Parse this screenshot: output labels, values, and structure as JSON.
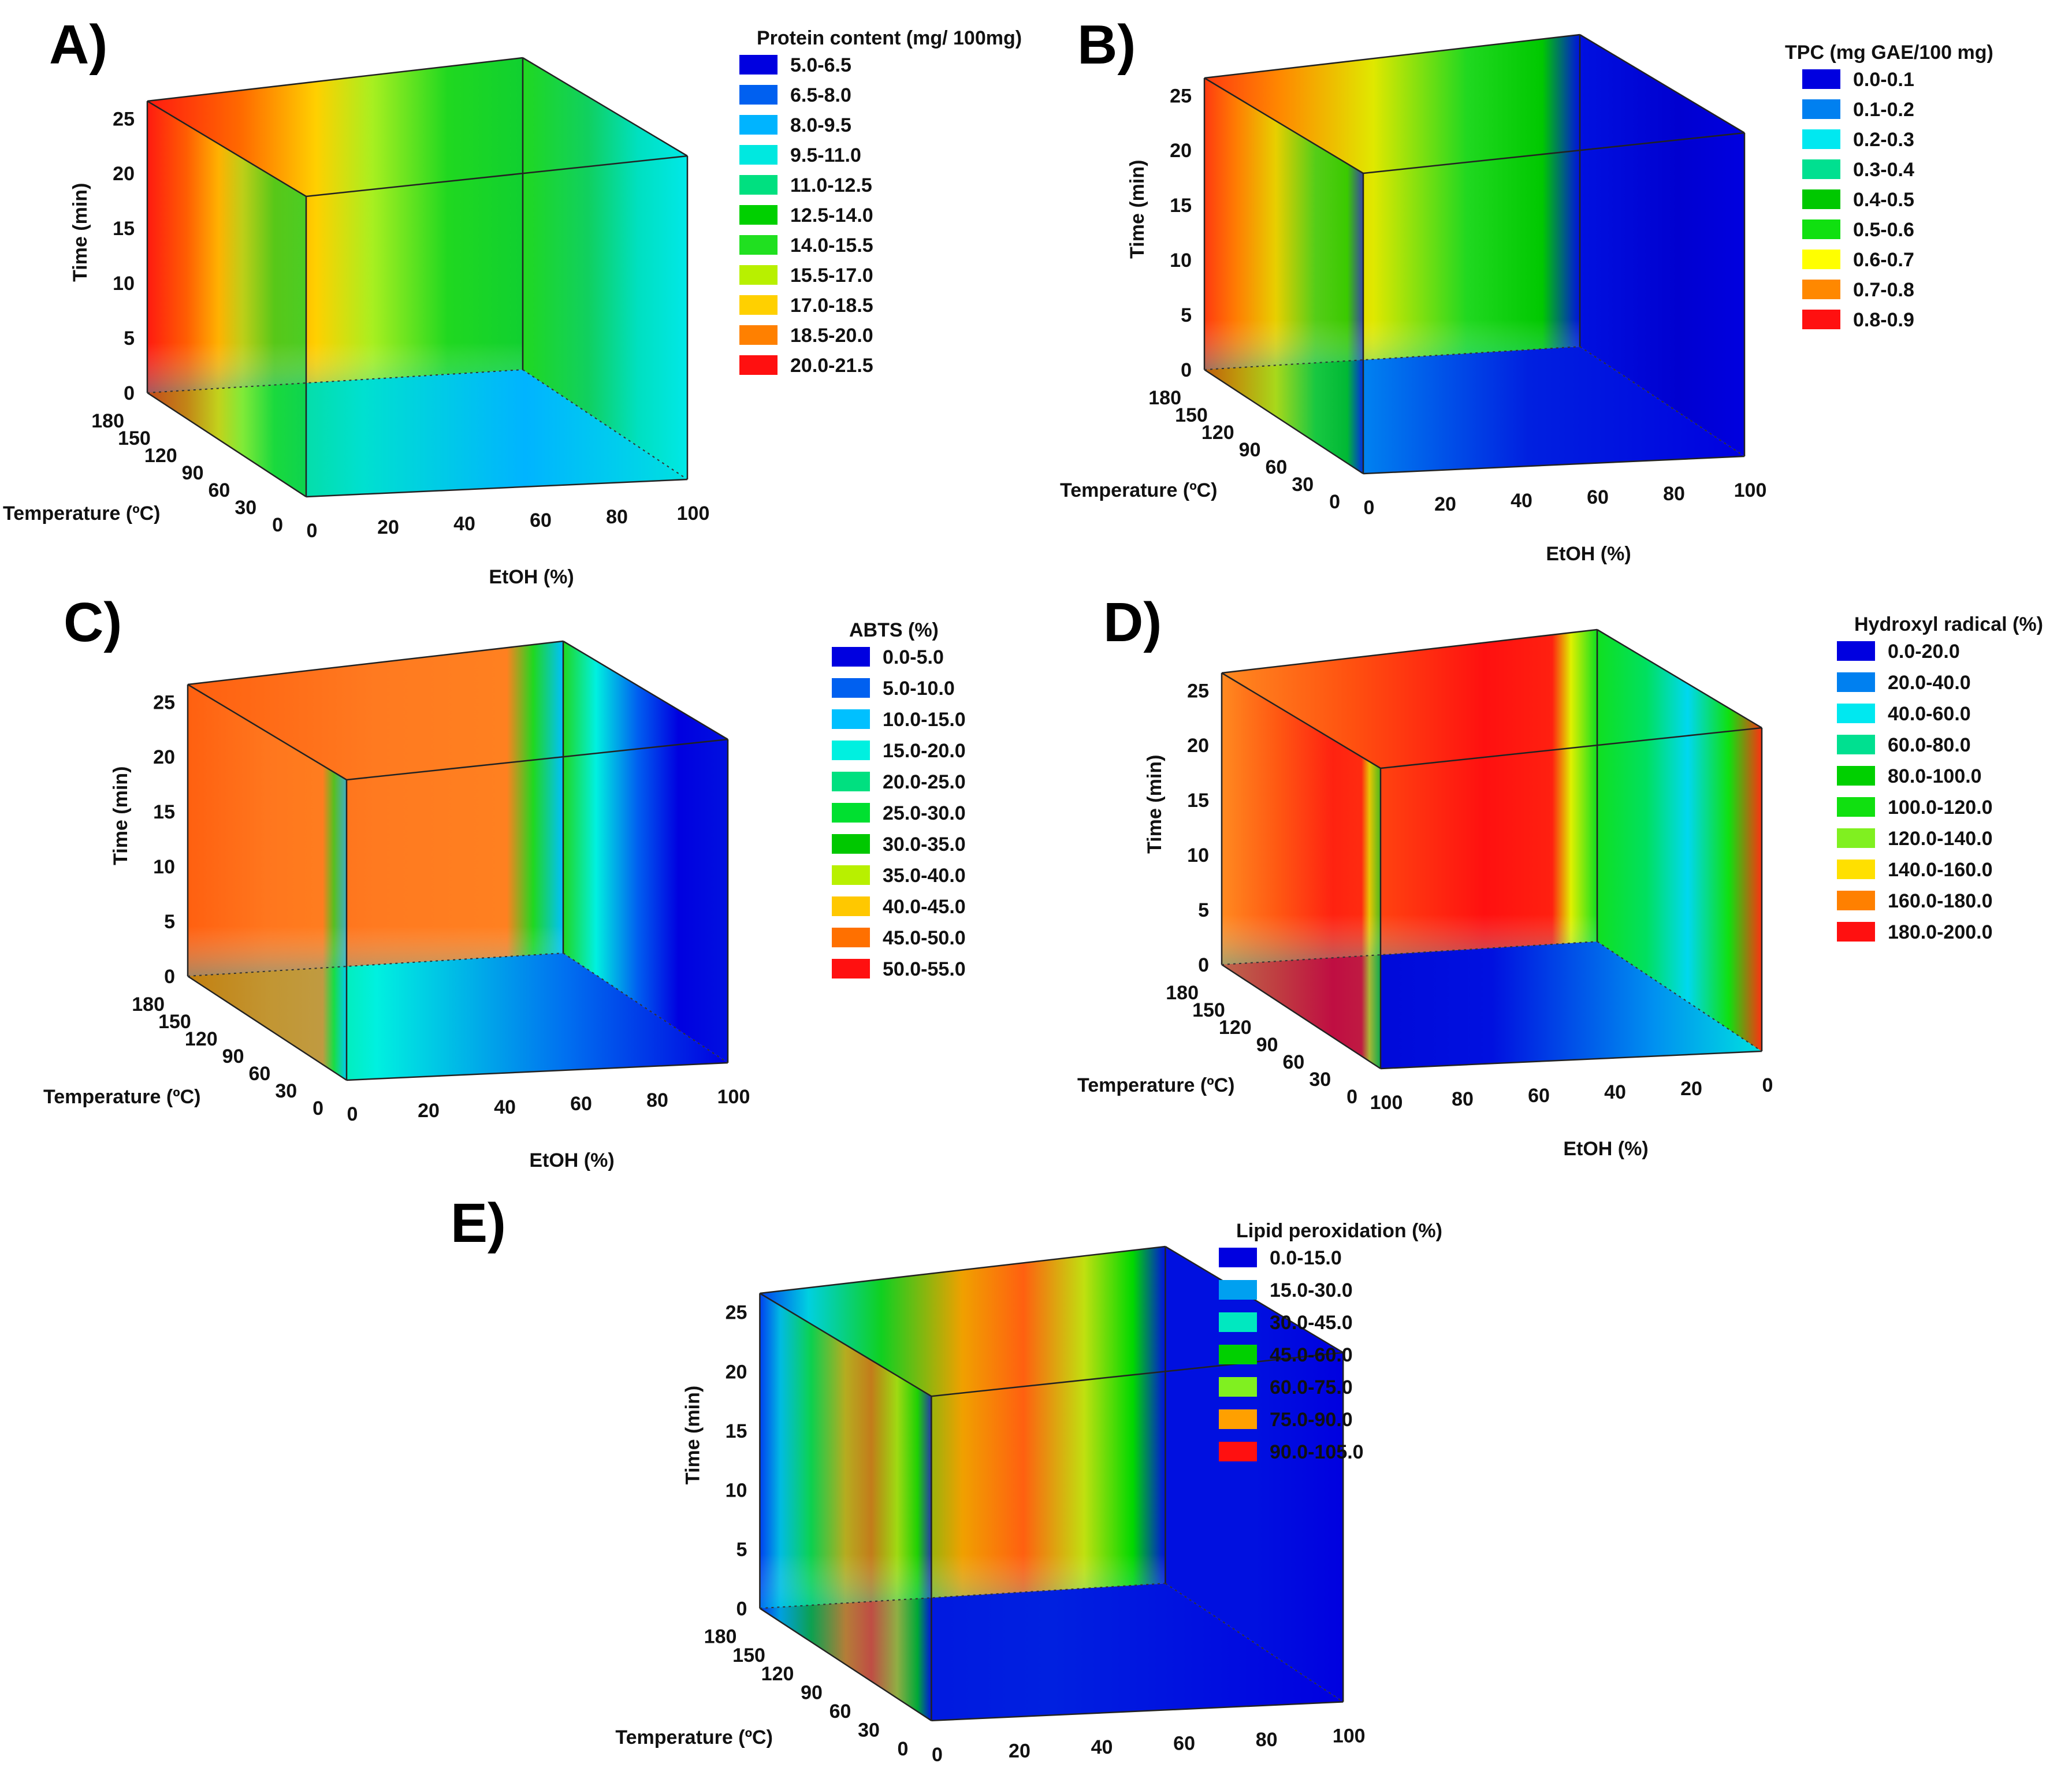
{
  "figure": {
    "panels": [
      {
        "panel_label": "A)",
        "legend_title": "Protein content (mg/ 100mg)",
        "legend": [
          {
            "range": "5.0-6.5",
            "color": "#0000e0"
          },
          {
            "range": "6.5-8.0",
            "color": "#0060f0"
          },
          {
            "range": "8.0-9.5",
            "color": "#00b4ff"
          },
          {
            "range": "9.5-11.0",
            "color": "#00e8e0"
          },
          {
            "range": "11.0-12.5",
            "color": "#00e080"
          },
          {
            "range": "12.5-14.0",
            "color": "#00d000"
          },
          {
            "range": "14.0-15.5",
            "color": "#20e020"
          },
          {
            "range": "15.5-17.0",
            "color": "#b8f000"
          },
          {
            "range": "17.0-18.5",
            "color": "#ffd000"
          },
          {
            "range": "18.5-20.0",
            "color": "#ff8000"
          },
          {
            "range": "20.0-21.5",
            "color": "#ff1010"
          }
        ],
        "axes": {
          "x_label": "EtOH (%)",
          "y_label": "Temperature (ºC)",
          "z_label": "Time (min)",
          "x_ticks": [
            "0",
            "20",
            "40",
            "60",
            "80",
            "100"
          ],
          "y_ticks": [
            "0",
            "30",
            "60",
            "90",
            "120",
            "150",
            "180"
          ],
          "z_ticks": [
            "0",
            "5",
            "10",
            "15",
            "20",
            "25"
          ]
        }
      },
      {
        "panel_label": "B)",
        "legend_title": "TPC (mg GAE/100 mg)",
        "legend": [
          {
            "range": "0.0-0.1",
            "color": "#0000e0"
          },
          {
            "range": "0.1-0.2",
            "color": "#0080f0"
          },
          {
            "range": "0.2-0.3",
            "color": "#00e8f0"
          },
          {
            "range": "0.3-0.4",
            "color": "#00e090"
          },
          {
            "range": "0.4-0.5",
            "color": "#00c800"
          },
          {
            "range": "0.5-0.6",
            "color": "#10e010"
          },
          {
            "range": "0.6-0.7",
            "color": "#ffff00"
          },
          {
            "range": "0.7-0.8",
            "color": "#ff8800"
          },
          {
            "range": "0.8-0.9",
            "color": "#ff1010"
          }
        ],
        "axes": {
          "x_label": "EtOH (%)",
          "y_label": "Temperature (ºC)",
          "z_label": "Time (min)",
          "x_ticks": [
            "0",
            "20",
            "40",
            "60",
            "80",
            "100"
          ],
          "y_ticks": [
            "0",
            "30",
            "60",
            "90",
            "120",
            "150",
            "180"
          ],
          "z_ticks": [
            "0",
            "5",
            "10",
            "15",
            "20",
            "25"
          ]
        }
      },
      {
        "panel_label": "C)",
        "legend_title": "ABTS (%)",
        "legend": [
          {
            "range": "0.0-5.0",
            "color": "#0000e0"
          },
          {
            "range": "5.0-10.0",
            "color": "#0060f0"
          },
          {
            "range": "10.0-15.0",
            "color": "#00c0ff"
          },
          {
            "range": "15.0-20.0",
            "color": "#00f0e0"
          },
          {
            "range": "20.0-25.0",
            "color": "#00e080"
          },
          {
            "range": "25.0-30.0",
            "color": "#00e030"
          },
          {
            "range": "30.0-35.0",
            "color": "#00c800"
          },
          {
            "range": "35.0-40.0",
            "color": "#b8f000"
          },
          {
            "range": "40.0-45.0",
            "color": "#ffc800"
          },
          {
            "range": "45.0-50.0",
            "color": "#ff7000"
          },
          {
            "range": "50.0-55.0",
            "color": "#ff1010"
          }
        ],
        "axes": {
          "x_label": "EtOH (%)",
          "y_label": "Temperature (ºC)",
          "z_label": "Time (min)",
          "x_ticks": [
            "0",
            "20",
            "40",
            "60",
            "80",
            "100"
          ],
          "y_ticks": [
            "0",
            "30",
            "60",
            "90",
            "120",
            "150",
            "180"
          ],
          "z_ticks": [
            "0",
            "5",
            "10",
            "15",
            "20",
            "25"
          ]
        }
      },
      {
        "panel_label": "D)",
        "legend_title": "Hydroxyl radical (%)",
        "legend": [
          {
            "range": "0.0-20.0",
            "color": "#0000e0"
          },
          {
            "range": "20.0-40.0",
            "color": "#0080f0"
          },
          {
            "range": "40.0-60.0",
            "color": "#00e8f0"
          },
          {
            "range": "60.0-80.0",
            "color": "#00e090"
          },
          {
            "range": "80.0-100.0",
            "color": "#00d000"
          },
          {
            "range": "100.0-120.0",
            "color": "#10e010"
          },
          {
            "range": "120.0-140.0",
            "color": "#80f020"
          },
          {
            "range": "140.0-160.0",
            "color": "#ffe000"
          },
          {
            "range": "160.0-180.0",
            "color": "#ff8000"
          },
          {
            "range": "180.0-200.0",
            "color": "#ff1010"
          }
        ],
        "axes": {
          "x_label": "EtOH (%)",
          "y_label": "Temperature (ºC)",
          "z_label": "Time (min)",
          "x_ticks": [
            "100",
            "80",
            "60",
            "40",
            "20",
            "0"
          ],
          "y_ticks": [
            "0",
            "30",
            "60",
            "90",
            "120",
            "150",
            "180"
          ],
          "z_ticks": [
            "0",
            "5",
            "10",
            "15",
            "20",
            "25"
          ]
        }
      },
      {
        "panel_label": "E)",
        "legend_title": "Lipid peroxidation (%)",
        "legend": [
          {
            "range": "0.0-15.0",
            "color": "#0000e0"
          },
          {
            "range": "15.0-30.0",
            "color": "#00a0f0"
          },
          {
            "range": "30.0-45.0",
            "color": "#00e8c0"
          },
          {
            "range": "45.0-60.0",
            "color": "#00d000"
          },
          {
            "range": "60.0-75.0",
            "color": "#80f020"
          },
          {
            "range": "75.0-90.0",
            "color": "#ffa000"
          },
          {
            "range": "90.0-105.0",
            "color": "#ff1010"
          }
        ],
        "axes": {
          "x_label": "EtOH (%)",
          "y_label": "Temperature (ºC)",
          "z_label": "Time (min)",
          "x_ticks": [
            "0",
            "20",
            "40",
            "60",
            "80",
            "100"
          ],
          "y_ticks": [
            "0",
            "30",
            "60",
            "90",
            "120",
            "150",
            "180"
          ],
          "z_ticks": [
            "0",
            "5",
            "10",
            "15",
            "20",
            "25"
          ]
        }
      }
    ]
  },
  "chart_data": [
    {
      "type": "heatmap",
      "panel": "A)",
      "title": "",
      "colorbar_title": "Protein content (mg/ 100mg)",
      "xlabel": "EtOH (%)",
      "ylabel": "Temperature (ºC)",
      "zlabel": "Time (min)",
      "xlim": [
        0,
        100
      ],
      "ylim": [
        0,
        180
      ],
      "zlim": [
        0,
        25
      ],
      "levels": [
        "5.0-6.5",
        "6.5-8.0",
        "8.0-9.5",
        "9.5-11.0",
        "11.0-12.5",
        "12.5-14.0",
        "14.0-15.5",
        "15.5-17.0",
        "17.0-18.5",
        "18.5-20.0",
        "20.0-21.5"
      ],
      "grid": false,
      "legend_position": "right"
    },
    {
      "type": "heatmap",
      "panel": "B)",
      "title": "",
      "colorbar_title": "TPC (mg GAE/100 mg)",
      "xlabel": "EtOH (%)",
      "ylabel": "Temperature (ºC)",
      "zlabel": "Time (min)",
      "xlim": [
        0,
        100
      ],
      "ylim": [
        0,
        180
      ],
      "zlim": [
        0,
        25
      ],
      "levels": [
        "0.0-0.1",
        "0.1-0.2",
        "0.2-0.3",
        "0.3-0.4",
        "0.4-0.5",
        "0.5-0.6",
        "0.6-0.7",
        "0.7-0.8",
        "0.8-0.9"
      ],
      "grid": false,
      "legend_position": "right"
    },
    {
      "type": "heatmap",
      "panel": "C)",
      "title": "",
      "colorbar_title": "ABTS (%)",
      "xlabel": "EtOH (%)",
      "ylabel": "Temperature (ºC)",
      "zlabel": "Time (min)",
      "xlim": [
        0,
        100
      ],
      "ylim": [
        0,
        180
      ],
      "zlim": [
        0,
        25
      ],
      "levels": [
        "0.0-5.0",
        "5.0-10.0",
        "10.0-15.0",
        "15.0-20.0",
        "20.0-25.0",
        "25.0-30.0",
        "30.0-35.0",
        "35.0-40.0",
        "40.0-45.0",
        "45.0-50.0",
        "50.0-55.0"
      ],
      "grid": false,
      "legend_position": "right"
    },
    {
      "type": "heatmap",
      "panel": "D)",
      "title": "",
      "colorbar_title": "Hydroxyl radical (%)",
      "xlabel": "EtOH (%)",
      "ylabel": "Temperature (ºC)",
      "zlabel": "Time (min)",
      "xlim": [
        100,
        0
      ],
      "ylim": [
        0,
        180
      ],
      "zlim": [
        0,
        25
      ],
      "levels": [
        "0.0-20.0",
        "20.0-40.0",
        "40.0-60.0",
        "60.0-80.0",
        "80.0-100.0",
        "100.0-120.0",
        "120.0-140.0",
        "140.0-160.0",
        "160.0-180.0",
        "180.0-200.0"
      ],
      "grid": false,
      "legend_position": "right"
    },
    {
      "type": "heatmap",
      "panel": "E)",
      "title": "",
      "colorbar_title": "Lipid peroxidation (%)",
      "xlabel": "EtOH (%)",
      "ylabel": "Temperature (ºC)",
      "zlabel": "Time (min)",
      "xlim": [
        0,
        100
      ],
      "ylim": [
        0,
        180
      ],
      "zlim": [
        0,
        25
      ],
      "levels": [
        "0.0-15.0",
        "15.0-30.0",
        "30.0-45.0",
        "45.0-60.0",
        "60.0-75.0",
        "75.0-90.0",
        "90.0-105.0"
      ],
      "grid": false,
      "legend_position": "right"
    }
  ]
}
